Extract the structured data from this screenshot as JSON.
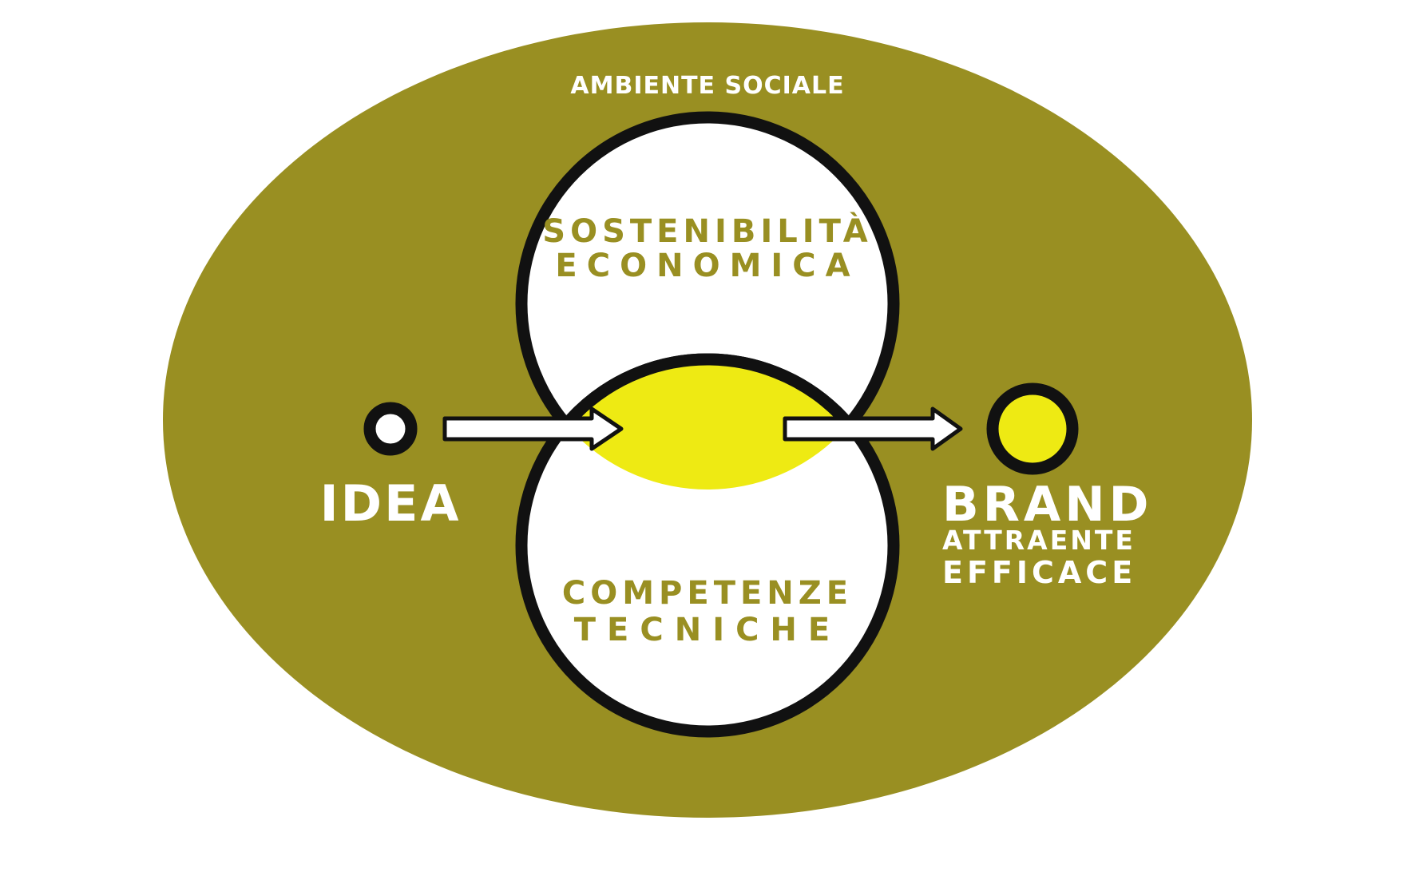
{
  "colors": {
    "background": "#ffffff",
    "olive": "#998f22",
    "yellow": "#eeea13",
    "outline": "#111111",
    "white": "#ffffff"
  },
  "environment": {
    "label": "AMBIENTE SOCIALE"
  },
  "circles": {
    "top": {
      "line1": "SOSTENIBILITÀ",
      "line2": "ECONOMICA"
    },
    "bottom": {
      "line1": "COMPETENZE",
      "line2": "TECNICHE"
    }
  },
  "input": {
    "label": "IDEA",
    "icon": "open-circle-icon"
  },
  "output": {
    "line1": "BRAND",
    "line2": "ATTRAENTE",
    "line3": "EFFICACE",
    "icon": "filled-yellow-circle-icon"
  },
  "arrows": [
    {
      "from": "IDEA",
      "to": "overlap",
      "icon": "right-arrow-icon"
    },
    {
      "from": "overlap",
      "to": "BRAND",
      "icon": "right-arrow-icon"
    }
  ]
}
